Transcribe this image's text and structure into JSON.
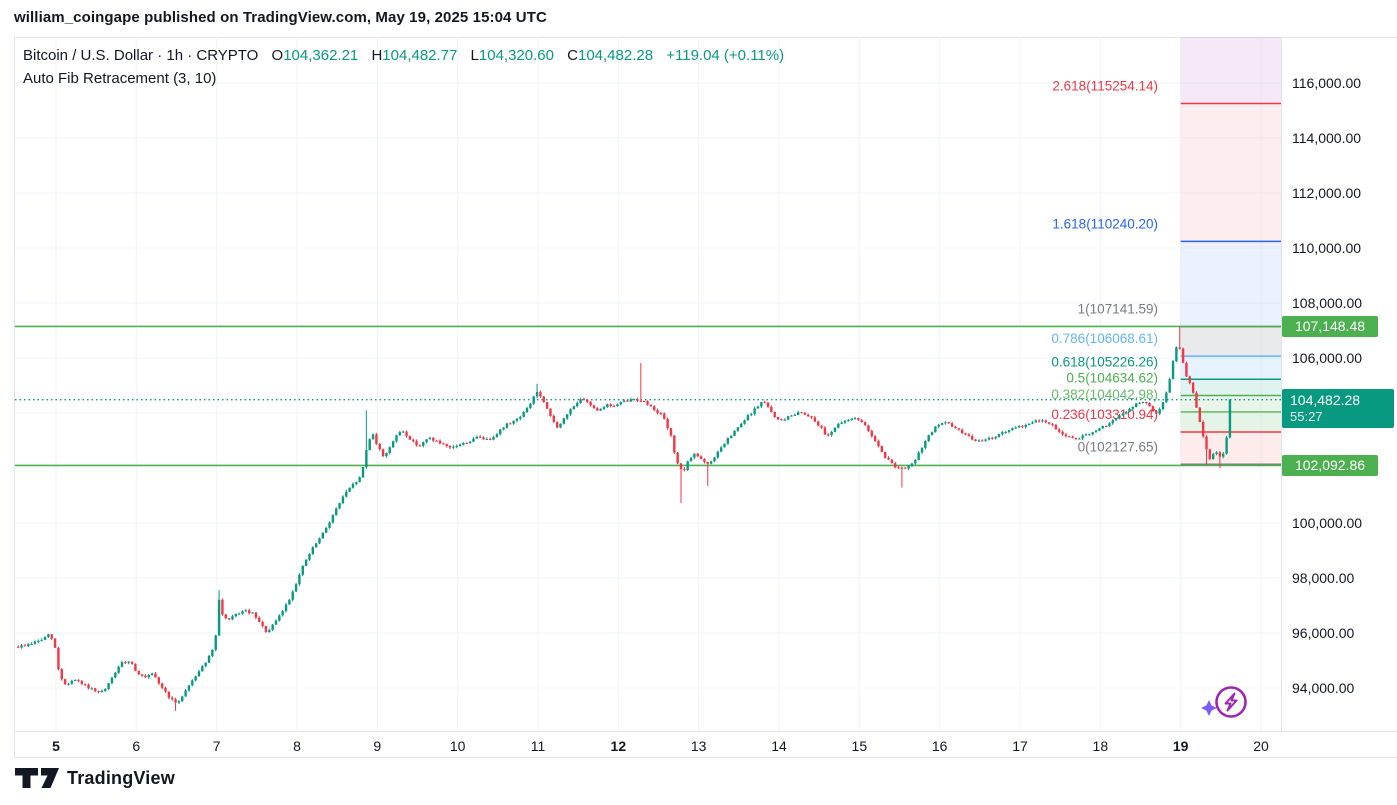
{
  "header": {
    "attribution": "william_coingape published on TradingView.com, May 19, 2025 15:04 UTC"
  },
  "legend": {
    "series_title": "Bitcoin / U.S. Dollar · 1h · CRYPTO",
    "o_label": "O",
    "o_value": "104,362.21",
    "h_label": "H",
    "h_value": "104,482.77",
    "l_label": "L",
    "l_value": "104,320.60",
    "c_label": "C",
    "c_value": "104,482.28",
    "change": "+119.04 (+0.11%)",
    "indicator": "Auto Fib Retracement (3, 10)"
  },
  "footer": {
    "logo_text": "TradingView"
  },
  "colors": {
    "up": "#089981",
    "down": "#f23645",
    "grid": "#f0f3fa",
    "separator": "#e0e3eb",
    "axis_text": "#131722",
    "range_line": "#4caf50",
    "current_line": "#089981",
    "boost_purple": "#9c27b0",
    "boost_spark": "#7c5cfa"
  },
  "price_axis": {
    "labels": [
      {
        "price": 116000,
        "text": "116,000.00"
      },
      {
        "price": 114000,
        "text": "114,000.00"
      },
      {
        "price": 112000,
        "text": "112,000.00"
      },
      {
        "price": 110000,
        "text": "110,000.00"
      },
      {
        "price": 108000,
        "text": "108,000.00"
      },
      {
        "price": 106000,
        "text": "106,000.00"
      },
      {
        "price": 100000,
        "text": "100,000.00"
      },
      {
        "price": 98000,
        "text": "98,000.00"
      },
      {
        "price": 96000,
        "text": "96,000.00"
      },
      {
        "price": 94000,
        "text": "94,000.00"
      }
    ],
    "badges": [
      {
        "type": "level",
        "text": "107,148.48",
        "price": 107148.48,
        "bg": "#4caf50"
      },
      {
        "type": "current",
        "text": "104,482.28",
        "countdown": "55:27",
        "price": 104482.28,
        "bg": "#089981"
      },
      {
        "type": "level",
        "text": "102,092.86",
        "price": 102092.86,
        "bg": "#4caf50"
      }
    ]
  },
  "time_axis": {
    "labels": [
      {
        "day": 5,
        "text": "5",
        "bold": true
      },
      {
        "day": 6,
        "text": "6",
        "bold": false
      },
      {
        "day": 7,
        "text": "7",
        "bold": false
      },
      {
        "day": 8,
        "text": "8",
        "bold": false
      },
      {
        "day": 9,
        "text": "9",
        "bold": false
      },
      {
        "day": 10,
        "text": "10",
        "bold": false
      },
      {
        "day": 11,
        "text": "11",
        "bold": false
      },
      {
        "day": 12,
        "text": "12",
        "bold": true
      },
      {
        "day": 13,
        "text": "13",
        "bold": false
      },
      {
        "day": 14,
        "text": "14",
        "bold": false
      },
      {
        "day": 15,
        "text": "15",
        "bold": false
      },
      {
        "day": 16,
        "text": "16",
        "bold": false
      },
      {
        "day": 17,
        "text": "17",
        "bold": false
      },
      {
        "day": 18,
        "text": "18",
        "bold": false
      },
      {
        "day": 19,
        "text": "19",
        "bold": true
      },
      {
        "day": 20,
        "text": "20",
        "bold": false
      }
    ]
  },
  "chart_data": {
    "type": "candlestick",
    "title": "Bitcoin / U.S. Dollar · 1h · CRYPTO",
    "interval_hours": 1,
    "x_range_days_may2025": [
      4.45,
      20.25
    ],
    "y_range_usd": [
      92400,
      117700
    ],
    "y_gridline_step": 2000,
    "current_price": 104482.28,
    "price_path": [
      [
        4.53,
        95500
      ],
      [
        4.62,
        95550
      ],
      [
        4.72,
        95650
      ],
      [
        4.82,
        95750
      ],
      [
        4.92,
        95950
      ],
      [
        4.98,
        95600
      ],
      [
        5.04,
        94500
      ],
      [
        5.12,
        94100
      ],
      [
        5.22,
        94300
      ],
      [
        5.32,
        94150
      ],
      [
        5.42,
        94000
      ],
      [
        5.52,
        93800
      ],
      [
        5.62,
        93950
      ],
      [
        5.72,
        94500
      ],
      [
        5.82,
        94900
      ],
      [
        5.92,
        95000
      ],
      [
        6.0,
        94600
      ],
      [
        6.1,
        94350
      ],
      [
        6.2,
        94500
      ],
      [
        6.3,
        94100
      ],
      [
        6.4,
        93700
      ],
      [
        6.5,
        93400
      ],
      [
        6.6,
        93850
      ],
      [
        6.7,
        94300
      ],
      [
        6.8,
        94700
      ],
      [
        6.9,
        95100
      ],
      [
        6.98,
        95600
      ],
      [
        7.03,
        97200
      ],
      [
        7.08,
        96600
      ],
      [
        7.15,
        96450
      ],
      [
        7.25,
        96700
      ],
      [
        7.35,
        96800
      ],
      [
        7.45,
        96700
      ],
      [
        7.55,
        96300
      ],
      [
        7.63,
        96000
      ],
      [
        7.72,
        96350
      ],
      [
        7.82,
        96800
      ],
      [
        7.9,
        97200
      ],
      [
        8.0,
        97900
      ],
      [
        8.1,
        98600
      ],
      [
        8.2,
        99100
      ],
      [
        8.32,
        99600
      ],
      [
        8.45,
        100300
      ],
      [
        8.58,
        101000
      ],
      [
        8.7,
        101400
      ],
      [
        8.8,
        101700
      ],
      [
        8.88,
        102900
      ],
      [
        8.94,
        103300
      ],
      [
        9.0,
        102800
      ],
      [
        9.08,
        102400
      ],
      [
        9.18,
        102900
      ],
      [
        9.3,
        103400
      ],
      [
        9.42,
        103000
      ],
      [
        9.52,
        102800
      ],
      [
        9.65,
        103100
      ],
      [
        9.78,
        102900
      ],
      [
        9.9,
        102700
      ],
      [
        10.02,
        102850
      ],
      [
        10.14,
        102950
      ],
      [
        10.26,
        103150
      ],
      [
        10.38,
        103000
      ],
      [
        10.5,
        103300
      ],
      [
        10.62,
        103600
      ],
      [
        10.75,
        103800
      ],
      [
        10.88,
        104200
      ],
      [
        10.98,
        104800
      ],
      [
        11.05,
        104500
      ],
      [
        11.15,
        103900
      ],
      [
        11.25,
        103450
      ],
      [
        11.35,
        103900
      ],
      [
        11.45,
        104300
      ],
      [
        11.55,
        104500
      ],
      [
        11.65,
        104300
      ],
      [
        11.75,
        104100
      ],
      [
        11.85,
        104300
      ],
      [
        11.95,
        104250
      ],
      [
        12.05,
        104400
      ],
      [
        12.2,
        104500
      ],
      [
        12.3,
        104450
      ],
      [
        12.42,
        104200
      ],
      [
        12.55,
        103900
      ],
      [
        12.65,
        103200
      ],
      [
        12.72,
        102300
      ],
      [
        12.8,
        101800
      ],
      [
        12.88,
        102300
      ],
      [
        12.95,
        102550
      ],
      [
        13.05,
        102250
      ],
      [
        13.12,
        102100
      ],
      [
        13.22,
        102500
      ],
      [
        13.35,
        103000
      ],
      [
        13.5,
        103500
      ],
      [
        13.62,
        103900
      ],
      [
        13.72,
        104200
      ],
      [
        13.8,
        104450
      ],
      [
        13.9,
        104050
      ],
      [
        14.0,
        103700
      ],
      [
        14.12,
        103850
      ],
      [
        14.25,
        104050
      ],
      [
        14.38,
        103900
      ],
      [
        14.5,
        103550
      ],
      [
        14.6,
        103150
      ],
      [
        14.7,
        103500
      ],
      [
        14.82,
        103700
      ],
      [
        14.95,
        103850
      ],
      [
        15.08,
        103500
      ],
      [
        15.2,
        103000
      ],
      [
        15.32,
        102400
      ],
      [
        15.45,
        102050
      ],
      [
        15.58,
        101950
      ],
      [
        15.7,
        102300
      ],
      [
        15.82,
        103000
      ],
      [
        15.95,
        103500
      ],
      [
        16.08,
        103650
      ],
      [
        16.2,
        103450
      ],
      [
        16.35,
        103150
      ],
      [
        16.5,
        102950
      ],
      [
        16.65,
        103100
      ],
      [
        16.8,
        103300
      ],
      [
        16.95,
        103450
      ],
      [
        17.1,
        103600
      ],
      [
        17.25,
        103750
      ],
      [
        17.4,
        103550
      ],
      [
        17.52,
        103250
      ],
      [
        17.65,
        103050
      ],
      [
        17.8,
        103150
      ],
      [
        17.95,
        103350
      ],
      [
        18.1,
        103600
      ],
      [
        18.22,
        103850
      ],
      [
        18.35,
        104100
      ],
      [
        18.48,
        104400
      ],
      [
        18.58,
        104350
      ],
      [
        18.68,
        103950
      ],
      [
        18.76,
        104250
      ],
      [
        18.84,
        104900
      ],
      [
        18.9,
        105800
      ],
      [
        18.96,
        106550
      ],
      [
        19.0,
        106300
      ],
      [
        19.06,
        105400
      ],
      [
        19.14,
        104900
      ],
      [
        19.22,
        103900
      ],
      [
        19.3,
        102900
      ],
      [
        19.36,
        102300
      ],
      [
        19.44,
        102600
      ],
      [
        19.5,
        102350
      ],
      [
        19.56,
        102750
      ],
      [
        19.6,
        103900
      ],
      [
        19.63,
        104482.28
      ]
    ],
    "wick_events": [
      {
        "day": 6.5,
        "low": 93170
      },
      {
        "day": 7.03,
        "high": 97560
      },
      {
        "day": 8.88,
        "high": 104100
      },
      {
        "day": 11.0,
        "high": 105060
      },
      {
        "day": 12.27,
        "high": 105820
      },
      {
        "day": 12.77,
        "low": 100730
      },
      {
        "day": 13.12,
        "low": 101350
      },
      {
        "day": 15.55,
        "low": 101290
      },
      {
        "day": 18.97,
        "high": 107148
      },
      {
        "day": 19.33,
        "low": 102093
      },
      {
        "day": 19.5,
        "low": 101990
      }
    ],
    "fib": {
      "indicator": "Auto Fib Retracement (3, 10)",
      "zone_start_day": 19.0,
      "levels": [
        {
          "ratio": 2.618,
          "price": 115254.14,
          "label": "2.618(115254.14)",
          "color": "#f23645"
        },
        {
          "ratio": 1.618,
          "price": 110240.2,
          "label": "1.618(110240.20)",
          "color": "#2962ff"
        },
        {
          "ratio": 1,
          "price": 107141.59,
          "label": "1(107141.59)",
          "color": "#787b86"
        },
        {
          "ratio": 0.786,
          "price": 106068.61,
          "label": "0.786(106068.61)",
          "color": "#64b5f6"
        },
        {
          "ratio": 0.618,
          "price": 105226.26,
          "label": "0.618(105226.26)",
          "color": "#089981"
        },
        {
          "ratio": 0.5,
          "price": 104634.62,
          "label": "0.5(104634.62)",
          "color": "#4caf50"
        },
        {
          "ratio": 0.382,
          "price": 104042.98,
          "label": "0.382(104042.98)",
          "color": "#66bb6a"
        },
        {
          "ratio": 0.236,
          "price": 103310.94,
          "label": "0.236(103310.94)",
          "color": "#f23645"
        },
        {
          "ratio": 0,
          "price": 102127.65,
          "label": "0(102127.65)",
          "color": "#787b86"
        }
      ],
      "bands": [
        {
          "top": "chart_top",
          "bottom": 115254.14,
          "fill": "rgba(156,39,176,0.10)"
        },
        {
          "top": 115254.14,
          "bottom": 110240.2,
          "fill": "rgba(242,54,69,0.09)"
        },
        {
          "top": 110240.2,
          "bottom": 107141.59,
          "fill": "rgba(41,98,255,0.09)"
        },
        {
          "top": 107141.59,
          "bottom": 106068.61,
          "fill": "rgba(120,123,134,0.16)"
        },
        {
          "top": 106068.61,
          "bottom": 105226.26,
          "fill": "rgba(100,181,246,0.16)"
        },
        {
          "top": 105226.26,
          "bottom": 104634.62,
          "fill": "rgba(8,153,129,0.12)"
        },
        {
          "top": 104634.62,
          "bottom": 104042.98,
          "fill": "rgba(76,175,80,0.12)"
        },
        {
          "top": 104042.98,
          "bottom": 103310.94,
          "fill": "rgba(102,187,106,0.16)"
        },
        {
          "top": 103310.94,
          "bottom": 102127.65,
          "fill": "rgba(242,54,69,0.10)"
        }
      ]
    },
    "range_lines": [
      {
        "price": 107148.48,
        "color": "#4caf50"
      },
      {
        "price": 102092.86,
        "color": "#4caf50"
      }
    ]
  }
}
